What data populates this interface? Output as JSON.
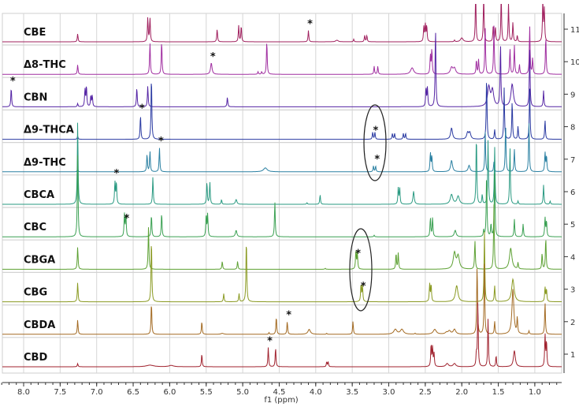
{
  "chart_data": {
    "type": "line",
    "subtype": "stacked NMR spectra",
    "xlabel": "f1 (ppm)",
    "xlim": [
      8.3,
      0.65
    ],
    "x_reversed": true,
    "x_ticks": [
      "8.0",
      "7.5",
      "7.0",
      "6.5",
      "6.0",
      "5.5",
      "5.0",
      "4.5",
      "4.0",
      "3.5",
      "3.0",
      "2.5",
      "2.0",
      "1.5",
      "1.0"
    ],
    "y_ticks": [
      "1",
      "2",
      "3",
      "4",
      "5",
      "6",
      "7",
      "8",
      "9",
      "10",
      "11"
    ],
    "grid": true,
    "marker_symbol": "*",
    "series": [
      {
        "name": "CBE",
        "trace": 11,
        "color": "#a0205e",
        "stars": [
          4.1
        ],
        "peaks": [
          [
            7.26,
            0.25
          ],
          [
            6.3,
            0.75
          ],
          [
            6.27,
            0.75
          ],
          [
            5.35,
            0.4
          ],
          [
            5.055,
            0.5
          ],
          [
            5.02,
            0.5
          ],
          [
            4.1,
            0.35
          ],
          [
            3.71,
            0.05,
            0.02
          ],
          [
            3.48,
            0.08
          ],
          [
            3.33,
            0.2
          ],
          [
            3.3,
            0.2
          ],
          [
            2.52,
            0.45
          ],
          [
            2.5,
            0.55
          ],
          [
            2.48,
            0.5
          ],
          [
            2.1,
            0.05
          ],
          [
            2.0,
            0.12,
            0.02
          ],
          [
            1.81,
            1.5
          ],
          [
            1.7,
            1.5
          ],
          [
            1.57,
            0.45
          ],
          [
            1.54,
            0.45
          ],
          [
            1.46,
            1.4
          ],
          [
            1.36,
            1.2
          ],
          [
            1.3,
            0.6
          ],
          [
            1.24,
            0.2
          ],
          [
            0.89,
            1.3
          ],
          [
            0.87,
            1.0
          ]
        ]
      },
      {
        "name": "Δ8-THC",
        "trace": 10,
        "color": "#a02ea0",
        "stars": [
          5.43
        ],
        "peaks": [
          [
            7.26,
            0.3
          ],
          [
            6.27,
            1.0
          ],
          [
            6.11,
            1.05
          ],
          [
            5.43,
            0.35,
            0.012
          ],
          [
            4.79,
            0.08
          ],
          [
            4.74,
            0.08
          ],
          [
            4.67,
            1.05
          ],
          [
            3.2,
            0.25
          ],
          [
            3.15,
            0.25
          ],
          [
            2.68,
            0.2,
            0.025
          ],
          [
            2.43,
            0.6
          ],
          [
            2.41,
            0.8
          ],
          [
            2.14,
            0.2,
            0.02
          ],
          [
            2.1,
            0.18,
            0.02
          ],
          [
            1.8,
            0.45
          ],
          [
            1.77,
            0.45
          ],
          [
            1.68,
            1.5
          ],
          [
            1.56,
            1.5
          ],
          [
            1.34,
            0.8
          ],
          [
            1.28,
            0.9
          ],
          [
            1.21,
            0.3
          ],
          [
            1.07,
            1.5
          ],
          [
            1.03,
            0.5
          ],
          [
            0.85,
            1.2
          ]
        ]
      },
      {
        "name": "CBN",
        "trace": 9,
        "color": "#5424a4",
        "stars": [
          8.17
        ],
        "peaks": [
          [
            8.17,
            0.6
          ],
          [
            7.26,
            0.1
          ],
          [
            7.16,
            0.55
          ],
          [
            7.14,
            0.65
          ],
          [
            7.08,
            0.35
          ],
          [
            7.06,
            0.35
          ],
          [
            6.45,
            0.6
          ],
          [
            6.3,
            0.65
          ],
          [
            5.21,
            0.3
          ],
          [
            2.49,
            0.6
          ],
          [
            2.47,
            0.6
          ],
          [
            2.36,
            2.5
          ],
          [
            1.63,
            0.6,
            0.02
          ],
          [
            1.58,
            0.5,
            0.02
          ],
          [
            1.47,
            2.0
          ],
          [
            1.31,
            0.7,
            0.02
          ],
          [
            1.07,
            1.8
          ],
          [
            0.88,
            0.5
          ]
        ]
      },
      {
        "name": "Δ9-THCA",
        "trace": 8,
        "color": "#2a3aa2",
        "stars": [
          6.4,
          3.2
        ],
        "peaks": [
          [
            7.26,
            0.1
          ],
          [
            6.4,
            0.75
          ],
          [
            6.25,
            2.0
          ],
          [
            3.22,
            0.22
          ],
          [
            3.19,
            0.22
          ],
          [
            2.95,
            0.18
          ],
          [
            2.92,
            0.18
          ],
          [
            2.8,
            0.18
          ],
          [
            2.77,
            0.18
          ],
          [
            2.14,
            0.35,
            0.015
          ],
          [
            1.92,
            0.2,
            0.015
          ],
          [
            1.89,
            0.2,
            0.015
          ],
          [
            1.66,
            2.0
          ],
          [
            1.55,
            0.3
          ],
          [
            1.42,
            1.6
          ],
          [
            1.31,
            1.2
          ],
          [
            1.23,
            0.4
          ],
          [
            1.07,
            1.6
          ],
          [
            0.86,
            0.6
          ]
        ]
      },
      {
        "name": "Δ9-THC",
        "trace": 7,
        "color": "#2a80a2",
        "stars": [
          6.14,
          3.18
        ],
        "peaks": [
          [
            7.26,
            0.1
          ],
          [
            6.31,
            0.55
          ],
          [
            6.27,
            0.65
          ],
          [
            6.14,
            0.75
          ],
          [
            4.69,
            0.12,
            0.03
          ],
          [
            3.21,
            0.18
          ],
          [
            3.18,
            0.18
          ],
          [
            2.43,
            0.6
          ],
          [
            2.41,
            0.5
          ],
          [
            2.14,
            0.35,
            0.015
          ],
          [
            1.9,
            0.2,
            0.015
          ],
          [
            1.68,
            1.3
          ],
          [
            1.56,
            0.3
          ],
          [
            1.4,
            1.5
          ],
          [
            1.28,
            0.7
          ],
          [
            1.08,
            1.5
          ],
          [
            0.86,
            0.6
          ],
          [
            0.84,
            0.5
          ]
        ]
      },
      {
        "name": "CBCA",
        "trace": 6,
        "color": "#2a9a82",
        "stars": [
          6.75
        ],
        "peaks": [
          [
            7.26,
            2.6
          ],
          [
            6.75,
            0.7
          ],
          [
            6.73,
            0.7
          ],
          [
            6.23,
            0.85
          ],
          [
            5.49,
            0.7
          ],
          [
            5.45,
            0.7
          ],
          [
            5.29,
            0.15
          ],
          [
            5.09,
            0.15,
            0.012
          ],
          [
            4.12,
            0.05
          ],
          [
            3.94,
            0.3
          ],
          [
            2.87,
            0.5
          ],
          [
            2.85,
            0.5
          ],
          [
            2.66,
            0.4,
            0.01
          ],
          [
            2.14,
            0.3,
            0.02
          ],
          [
            2.05,
            0.25,
            0.02
          ],
          [
            1.8,
            2.2
          ],
          [
            1.72,
            0.3
          ],
          [
            1.64,
            2.0
          ],
          [
            1.55,
            1.8
          ],
          [
            1.34,
            1.8
          ],
          [
            1.23,
            0.1
          ],
          [
            0.88,
            0.6
          ],
          [
            0.79,
            0.1
          ]
        ]
      },
      {
        "name": "CBC",
        "trace": 5,
        "color": "#3aa052",
        "stars": [
          6.61
        ],
        "peaks": [
          [
            7.26,
            2.6
          ],
          [
            6.62,
            0.7
          ],
          [
            6.6,
            0.7
          ],
          [
            6.25,
            0.7
          ],
          [
            6.11,
            0.75
          ],
          [
            5.5,
            0.7
          ],
          [
            5.48,
            0.7
          ],
          [
            5.09,
            0.2,
            0.012
          ],
          [
            4.56,
            1.1
          ],
          [
            3.2,
            0.05
          ],
          [
            2.43,
            0.6
          ],
          [
            2.4,
            0.6
          ],
          [
            2.09,
            0.2,
            0.015
          ],
          [
            1.7,
            0.2
          ],
          [
            1.66,
            2.0
          ],
          [
            1.6,
            0.4
          ],
          [
            1.55,
            2.0
          ],
          [
            1.28,
            0.55
          ],
          [
            1.16,
            0.4
          ],
          [
            0.86,
            0.6
          ],
          [
            0.84,
            0.5
          ]
        ]
      },
      {
        "name": "CBGA",
        "trace": 4,
        "color": "#5ca032",
        "stars": [
          3.44
        ],
        "peaks": [
          [
            7.26,
            0.7
          ],
          [
            6.29,
            1.3
          ],
          [
            5.28,
            0.25
          ],
          [
            5.07,
            0.25
          ],
          [
            3.87,
            0.03
          ],
          [
            3.45,
            0.6
          ],
          [
            3.43,
            0.5
          ],
          [
            2.9,
            0.5
          ],
          [
            2.87,
            0.5
          ],
          [
            2.1,
            0.5,
            0.02
          ],
          [
            2.05,
            0.4,
            0.02
          ],
          [
            1.82,
            0.9
          ],
          [
            1.56,
            2.0
          ],
          [
            1.33,
            0.65,
            0.02
          ],
          [
            1.23,
            0.2
          ],
          [
            0.9,
            0.5
          ],
          [
            0.85,
            1.0
          ]
        ]
      },
      {
        "name": "CBG",
        "trace": 3,
        "color": "#8a9a22",
        "stars": [
          3.37
        ],
        "peaks": [
          [
            7.26,
            0.6
          ],
          [
            6.25,
            2.0
          ],
          [
            5.26,
            0.25
          ],
          [
            5.05,
            0.25
          ],
          [
            4.95,
            2.0
          ],
          [
            3.38,
            0.55
          ],
          [
            3.36,
            0.5
          ],
          [
            2.44,
            0.55
          ],
          [
            2.42,
            0.55
          ],
          [
            2.07,
            0.5,
            0.02
          ],
          [
            1.69,
            2.2
          ],
          [
            1.55,
            0.5
          ],
          [
            1.3,
            0.7,
            0.02
          ],
          [
            0.86,
            0.45
          ],
          [
            0.84,
            0.4
          ]
        ]
      },
      {
        "name": "CBDA",
        "trace": 2,
        "color": "#a36a22",
        "stars": [
          4.39
        ],
        "peaks": [
          [
            7.26,
            0.45
          ],
          [
            6.25,
            1.0
          ],
          [
            5.56,
            0.4
          ],
          [
            5.28,
            0.03,
            0.02
          ],
          [
            4.64,
            0.05
          ],
          [
            4.54,
            0.55
          ],
          [
            4.39,
            0.4
          ],
          [
            4.09,
            0.15,
            0.02
          ],
          [
            3.85,
            0.03
          ],
          [
            3.49,
            0.4
          ],
          [
            2.91,
            0.15,
            0.025
          ],
          [
            2.82,
            0.15,
            0.025
          ],
          [
            2.64,
            0.03
          ],
          [
            2.37,
            0.15,
            0.025
          ],
          [
            2.21,
            0.05,
            0.02
          ],
          [
            2.17,
            0.1,
            0.02
          ],
          [
            2.1,
            0.15,
            0.02
          ],
          [
            1.79,
            2.2
          ],
          [
            1.69,
            2.2
          ],
          [
            1.55,
            0.4
          ],
          [
            1.3,
            1.4,
            0.015
          ],
          [
            1.24,
            0.5
          ],
          [
            1.08,
            0.1
          ],
          [
            0.86,
            1.0
          ]
        ]
      },
      {
        "name": "CBD",
        "trace": 1,
        "color": "#a0222e",
        "stars": [
          4.65
        ],
        "peaks": [
          [
            7.26,
            0.1
          ],
          [
            6.27,
            0.05,
            0.06
          ],
          [
            5.98,
            0.04,
            0.04
          ],
          [
            5.56,
            0.4
          ],
          [
            4.65,
            0.6
          ],
          [
            4.55,
            0.6
          ],
          [
            3.85,
            0.15
          ],
          [
            3.83,
            0.15
          ],
          [
            2.42,
            0.7
          ],
          [
            2.4,
            0.6
          ],
          [
            2.38,
            0.4
          ],
          [
            2.2,
            0.1,
            0.02
          ],
          [
            2.1,
            0.1,
            0.02
          ],
          [
            1.8,
            0.4
          ],
          [
            1.78,
            2.0
          ],
          [
            1.64,
            1.5
          ],
          [
            1.53,
            0.35
          ],
          [
            1.28,
            0.5,
            0.015
          ],
          [
            0.86,
            1.0
          ],
          [
            0.84,
            0.8
          ]
        ]
      }
    ]
  }
}
